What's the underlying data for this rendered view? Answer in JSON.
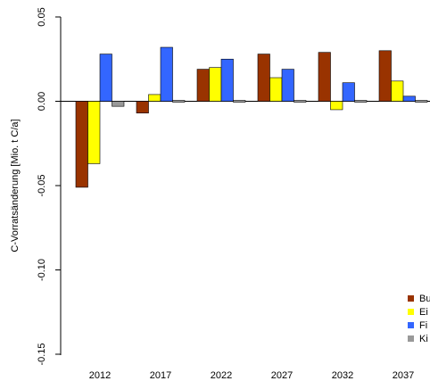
{
  "chart_data": {
    "type": "bar",
    "title": "",
    "xlabel": "",
    "ylabel": "C-Vorratsänderung [Mio. t C/a]",
    "ylim": [
      -0.15,
      0.05
    ],
    "yticks": [
      -0.15,
      -0.1,
      -0.05,
      0.0,
      0.05
    ],
    "ytick_labels": [
      "-0.15",
      "-0.10",
      "-0.05",
      "0.00",
      "0.05"
    ],
    "categories": [
      "2012",
      "2017",
      "2022",
      "2027",
      "2032",
      "2037"
    ],
    "series": [
      {
        "name": "Bu",
        "color": "#993300",
        "values": [
          -0.051,
          -0.007,
          0.019,
          0.028,
          0.029,
          0.03
        ]
      },
      {
        "name": "Ei",
        "color": "#ffff00",
        "values": [
          -0.037,
          0.004,
          0.02,
          0.014,
          -0.005,
          0.012
        ]
      },
      {
        "name": "Fi",
        "color": "#3366ff",
        "values": [
          0.028,
          0.032,
          0.025,
          0.019,
          0.011,
          0.003
        ]
      },
      {
        "name": "Ki",
        "color": "#999999",
        "values": [
          -0.003,
          -0.001,
          0.001,
          -0.0003,
          -0.0003,
          0.0007
        ]
      }
    ],
    "legend_position": "bottom-right",
    "grid": false
  }
}
